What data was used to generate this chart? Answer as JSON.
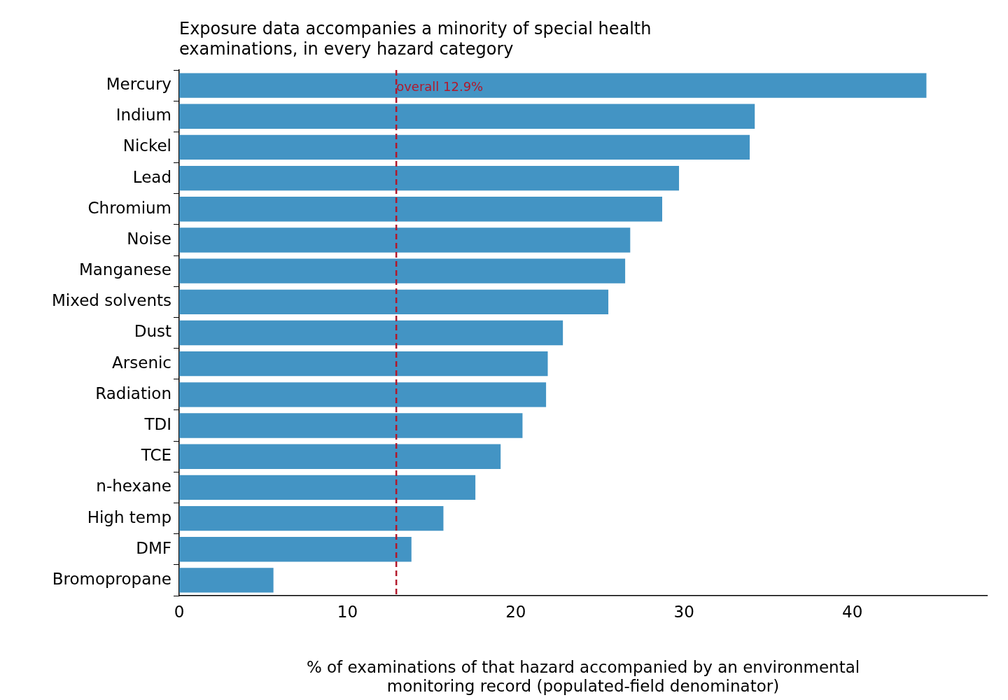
{
  "chart_data": {
    "type": "bar",
    "orientation": "horizontal",
    "title": "Exposure data accompanies a minority of special health examinations, in every hazard category",
    "xlabel": "% of examinations of that hazard accompanied by an environmental monitoring record (populated-field denominator)",
    "categories": [
      "Mercury",
      "Indium",
      "Nickel",
      "Lead",
      "Chromium",
      "Noise",
      "Manganese",
      "Mixed solvents",
      "Dust",
      "Arsenic",
      "Radiation",
      "TDI",
      "TCE",
      "n-hexane",
      "High temp",
      "DMF",
      "Bromopropane"
    ],
    "values": [
      44.4,
      34.2,
      33.9,
      29.7,
      28.7,
      26.8,
      26.5,
      25.5,
      22.8,
      21.9,
      21.8,
      20.4,
      19.1,
      17.6,
      15.7,
      13.8,
      5.6
    ],
    "color": "#4394c4",
    "xlim": [
      0,
      48
    ],
    "xticks": [
      0,
      10,
      20,
      30,
      40
    ],
    "grid": false,
    "legend": false,
    "ref_lines": [
      {
        "axis": "x",
        "value": 12.9,
        "label": "overall 12.9%",
        "color": "#b2182b",
        "line_style": "dashed"
      }
    ]
  }
}
